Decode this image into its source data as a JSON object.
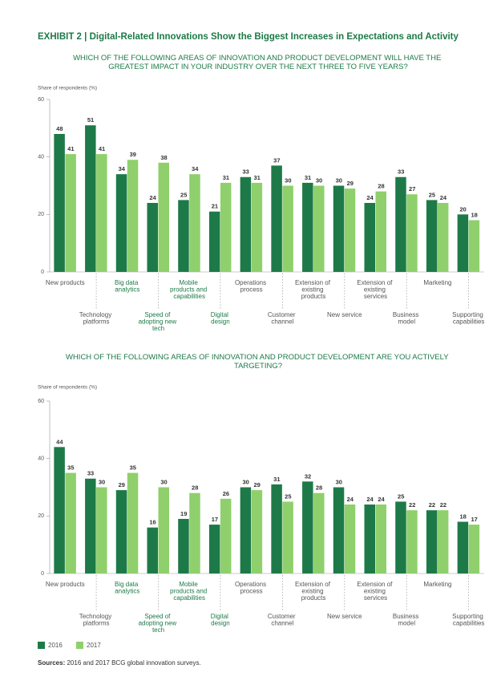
{
  "exhibit": {
    "label": "EXHIBIT 2",
    "title": "Digital-Related Innovations Show the Biggest Increases in Expectations and Activity"
  },
  "chart_data": [
    {
      "type": "bar",
      "title": "WHICH OF THE FOLLOWING AREAS OF INNOVATION AND PRODUCT DEVELOPMENT WILL HAVE THE GREATEST IMPACT IN YOUR INDUSTRY OVER THE NEXT THREE TO FIVE YEARS?",
      "y_label": "Share of respondents (%)",
      "categories": [
        "New products",
        "Technology platforms",
        "Big data analytics",
        "Speed of adopting new tech",
        "Mobile products and capabilities",
        "Digital design",
        "Operations process",
        "Customer channel",
        "Extension of existing products",
        "New service",
        "Extension of existing services",
        "Business model",
        "Marketing",
        "Supporting capabilities"
      ],
      "series": [
        {
          "name": "2016",
          "color": "#1d7a48",
          "values": [
            48,
            51,
            34,
            24,
            25,
            21,
            33,
            37,
            31,
            30,
            24,
            33,
            25,
            20
          ]
        },
        {
          "name": "2017",
          "color": "#8fd06c",
          "values": [
            41,
            41,
            39,
            38,
            34,
            31,
            31,
            30,
            30,
            29,
            28,
            27,
            24,
            18
          ]
        }
      ],
      "ylim": [
        0,
        60
      ],
      "yticks": [
        0,
        20,
        40,
        60
      ]
    },
    {
      "type": "bar",
      "title": "WHICH OF THE FOLLOWING AREAS OF INNOVATION AND PRODUCT DEVELOPMENT ARE YOU ACTIVELY TARGETING?",
      "y_label": "Share of respondents (%)",
      "categories": [
        "New products",
        "Technology platforms",
        "Big data analytics",
        "Speed of adopting new tech",
        "Mobile products and capabilities",
        "Digital design",
        "Operations process",
        "Customer channel",
        "Extension of existing products",
        "New service",
        "Extension of existing services",
        "Business model",
        "Marketing",
        "Supporting capabilities"
      ],
      "series": [
        {
          "color": "#1d7a48",
          "values": [
            44,
            33,
            29,
            16,
            19,
            17,
            30,
            31,
            32,
            30,
            24,
            25,
            22,
            18
          ]
        },
        {
          "color": "#8fd06c",
          "values": [
            35,
            30,
            35,
            30,
            28,
            26,
            29,
            25,
            28,
            24,
            24,
            22,
            22,
            17
          ]
        }
      ],
      "ylim": [
        0,
        60
      ],
      "yticks": [
        0,
        20,
        40,
        60
      ]
    }
  ],
  "source": {
    "label": "Sources:",
    "text": "2016 and 2017 BCG global innovation surveys."
  }
}
